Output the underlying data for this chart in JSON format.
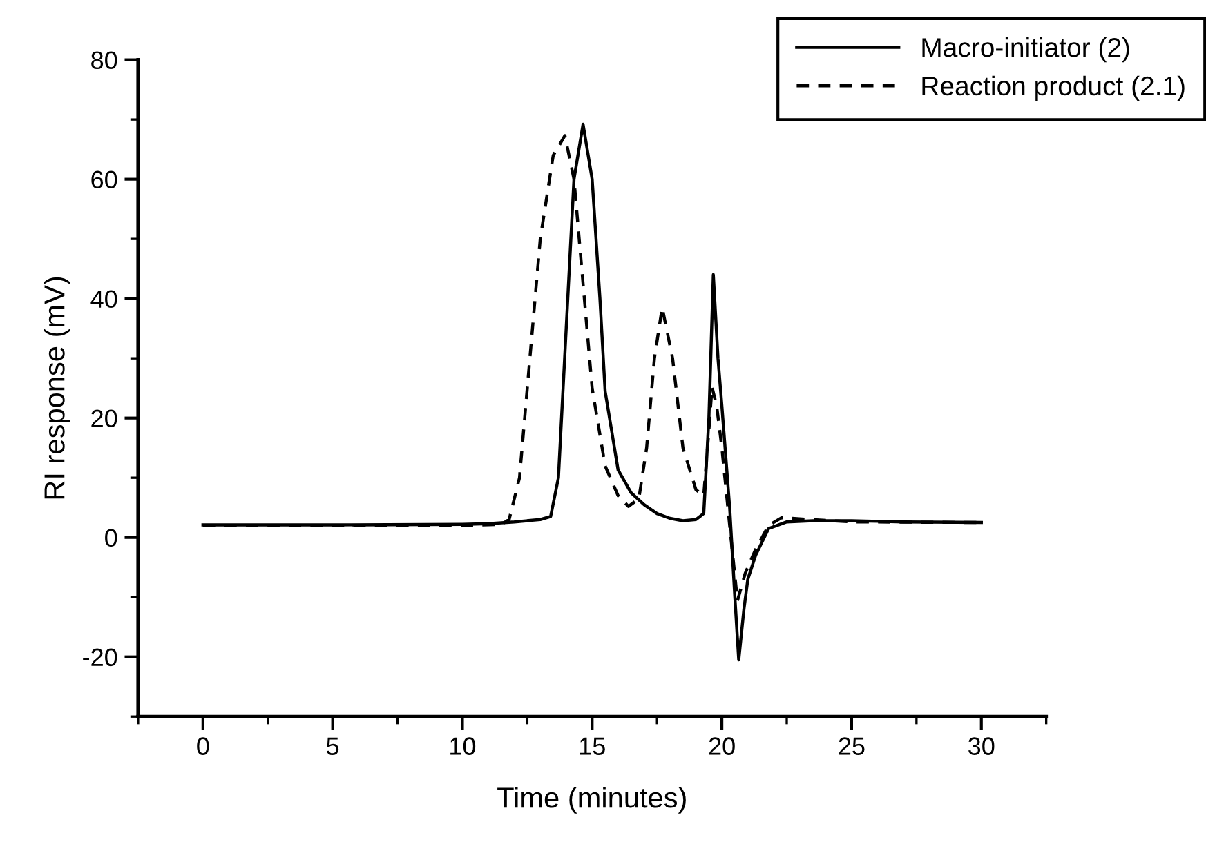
{
  "chart_data": {
    "type": "line",
    "xlabel": "Time (minutes)",
    "ylabel": "RI response (mV)",
    "xlim": [
      -2.5,
      32.5
    ],
    "ylim": [
      -30,
      80
    ],
    "xticks": [
      {
        "value": -2.5,
        "label": null
      },
      0,
      {
        "value": 2.5,
        "label": null
      },
      5,
      {
        "value": 7.5,
        "label": null
      },
      10,
      {
        "value": 12.5,
        "label": null
      },
      15,
      {
        "value": 17.5,
        "label": null
      },
      20,
      {
        "value": 22.5,
        "label": null
      },
      25,
      {
        "value": 27.5,
        "label": null
      },
      30,
      {
        "value": 32.5,
        "label": null
      }
    ],
    "yticks": [
      {
        "value": -30,
        "label": null
      },
      -20,
      {
        "value": -10,
        "label": null
      },
      0,
      {
        "value": 10,
        "label": null
      },
      20,
      {
        "value": 30,
        "label": null
      },
      40,
      {
        "value": 50,
        "label": null
      },
      60,
      {
        "value": 70,
        "label": null
      },
      80
    ],
    "grid": false,
    "legend": "top right",
    "marker": "none",
    "series": [
      {
        "name": "Macro-initiator (2)",
        "color": "#000000",
        "line_style": "solid",
        "x": [
          0,
          5,
          10,
          11,
          12,
          13,
          13.4,
          13.7,
          14.0,
          14.3,
          14.65,
          15.0,
          15.3,
          15.5,
          16.0,
          16.5,
          17.0,
          17.5,
          18.0,
          18.5,
          19.0,
          19.3,
          19.5,
          19.67,
          19.85,
          20.0,
          20.3,
          20.5,
          20.65,
          20.85,
          21.0,
          21.3,
          21.8,
          22.5,
          23.5,
          25,
          27,
          30
        ],
        "values": [
          2.1,
          2.1,
          2.2,
          2.3,
          2.6,
          3.0,
          3.5,
          10,
          35,
          60,
          69.2,
          60,
          40,
          24.5,
          11.3,
          7.5,
          5.5,
          4.0,
          3.2,
          2.8,
          3.0,
          4.0,
          20,
          44,
          30,
          22,
          5,
          -10,
          -20.5,
          -12,
          -7,
          -3,
          1.5,
          2.6,
          2.8,
          2.8,
          2.6,
          2.5
        ]
      },
      {
        "name": "Reaction product (2.1)",
        "color": "#000000",
        "line_style": "dashed",
        "x": [
          0,
          5,
          10,
          11.5,
          11.8,
          12.2,
          12.6,
          13.0,
          13.5,
          13.95,
          14.3,
          14.6,
          15.0,
          15.5,
          16.0,
          16.4,
          16.8,
          17.1,
          17.4,
          17.7,
          18.1,
          18.5,
          19.0,
          19.3,
          19.5,
          19.62,
          19.8,
          20.0,
          20.3,
          20.6,
          20.9,
          21.3,
          21.8,
          22.3,
          25,
          30
        ],
        "values": [
          2.0,
          2.0,
          2.0,
          2.2,
          3,
          10,
          30,
          50,
          64,
          67.3,
          60,
          45,
          25,
          12,
          7,
          5.2,
          6.5,
          15,
          30,
          38.5,
          30,
          15,
          8,
          7,
          18,
          25.2,
          22,
          15,
          2,
          -10.6,
          -6,
          -2,
          2,
          3.3,
          2.6,
          2.5
        ]
      }
    ]
  }
}
